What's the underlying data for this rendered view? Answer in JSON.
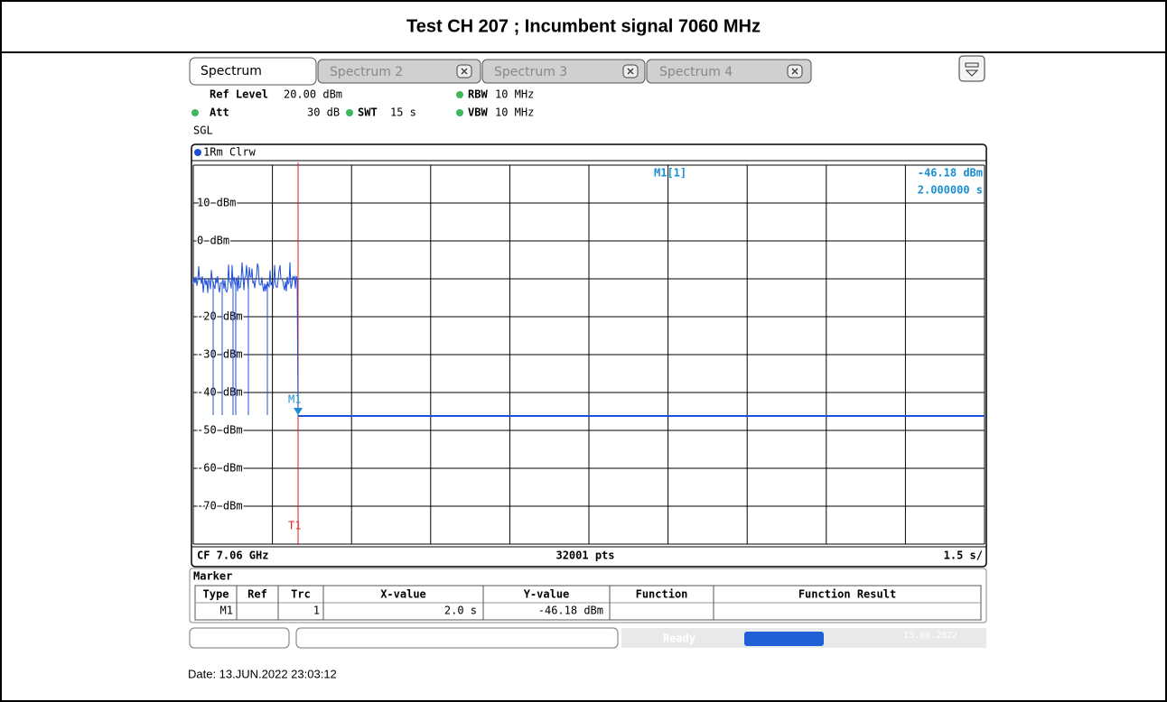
{
  "title": "Test CH 207 ; Incumbent signal 7060 MHz",
  "tabs": [
    "Spectrum",
    "Spectrum 2",
    "Spectrum 3",
    "Spectrum 4"
  ],
  "settings": {
    "ref_level_label": "Ref Level",
    "ref_level": "20.00 dBm",
    "rbw_label": "RBW",
    "rbw": "10 MHz",
    "att_label": "Att",
    "att": "30 dB",
    "swt_label": "SWT",
    "swt": "15 s",
    "vbw_label": "VBW",
    "vbw": "10 MHz",
    "mode": "SGL"
  },
  "trace_label": "1Rm Clrw",
  "marker_readout": {
    "name": "M1[1]",
    "level": "-46.18 dBm",
    "time": "2.000000 s"
  },
  "y_labels": [
    "10 dBm",
    "0 dBm",
    "-20 dBm",
    "-30 dBm",
    "-40 dBm",
    "-50 dBm",
    "-60 dBm",
    "-70 dBm"
  ],
  "marker_label": "M1",
  "trigger_label": "T1",
  "footer": {
    "cf": "CF 7.06 GHz",
    "points": "32001 pts",
    "sweep": "1.5 s/"
  },
  "marker_table": {
    "title": "Marker",
    "headers": [
      "Type",
      "Ref",
      "Trc",
      "X-value",
      "Y-value",
      "Function",
      "Function Result"
    ],
    "row": {
      "type": "M1",
      "trc": "1",
      "x_value": "2.0 s",
      "y_value": "-46.18 dBm"
    }
  },
  "status": {
    "ready": "Ready",
    "date": "13.06.2022"
  },
  "date_line": "Date: 13.JUN.2022  23:03:12"
}
